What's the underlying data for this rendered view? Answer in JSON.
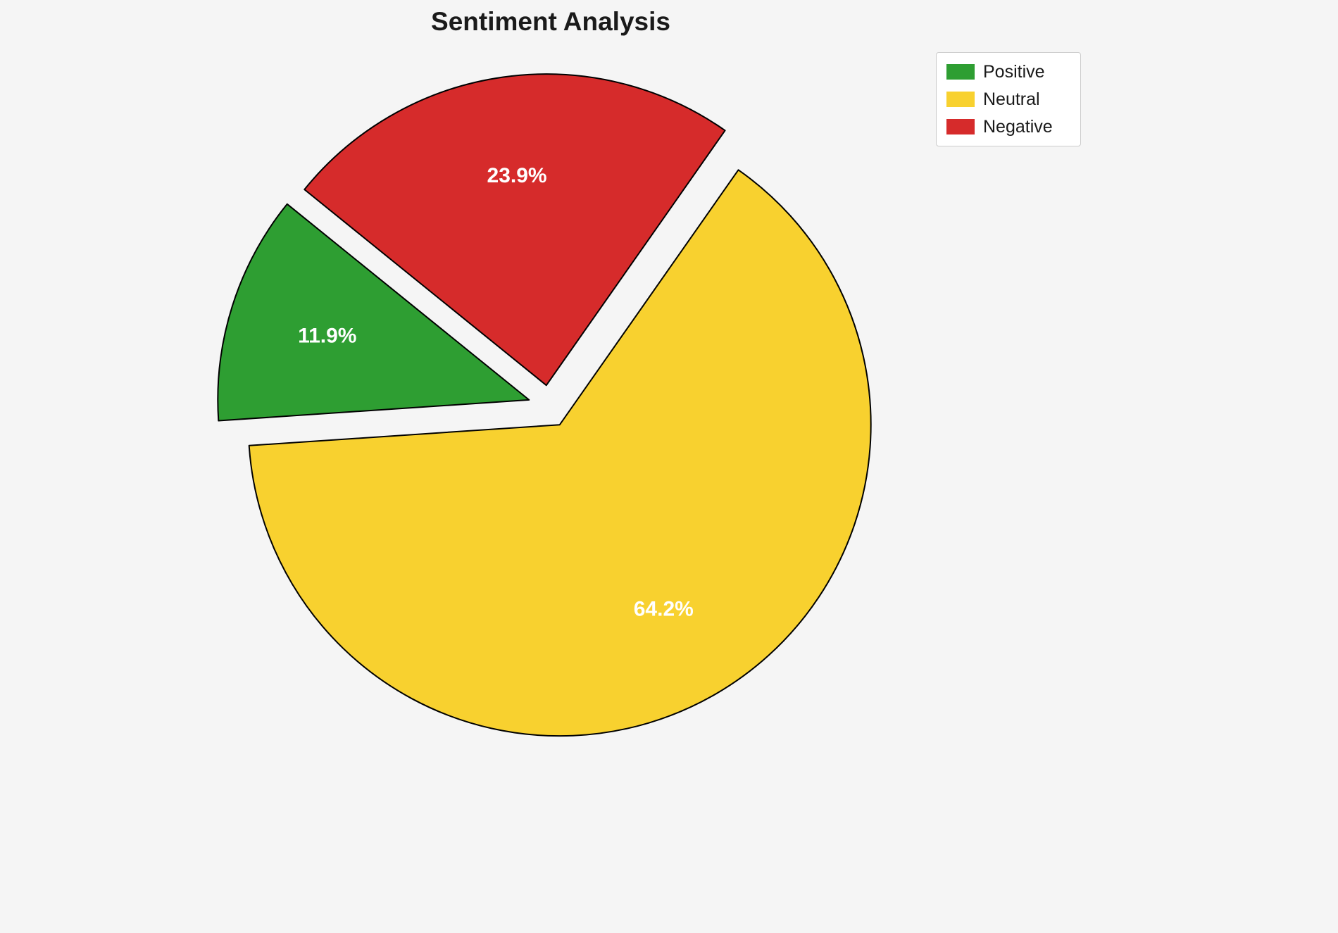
{
  "title": "Sentiment Analysis",
  "chart_data": {
    "type": "pie",
    "title": "Sentiment Analysis",
    "labels": [
      "Positive",
      "Neutral",
      "Negative"
    ],
    "values": [
      11.9,
      64.2,
      23.9
    ],
    "slice_labels": [
      "11.9%",
      "64.2%",
      "23.9%"
    ],
    "colors": [
      "#2e9e32",
      "#f8d12f",
      "#d62b2b"
    ],
    "edge_color": "#000000",
    "slice_label_color": "#ffffff",
    "background": "#f5f5f5",
    "start_angle": 141,
    "direction": "counterclockwise",
    "explode": 0.068,
    "pct_distance": 0.68,
    "legend": {
      "position": "upper-right",
      "entries": [
        "Positive",
        "Neutral",
        "Negative"
      ]
    }
  }
}
